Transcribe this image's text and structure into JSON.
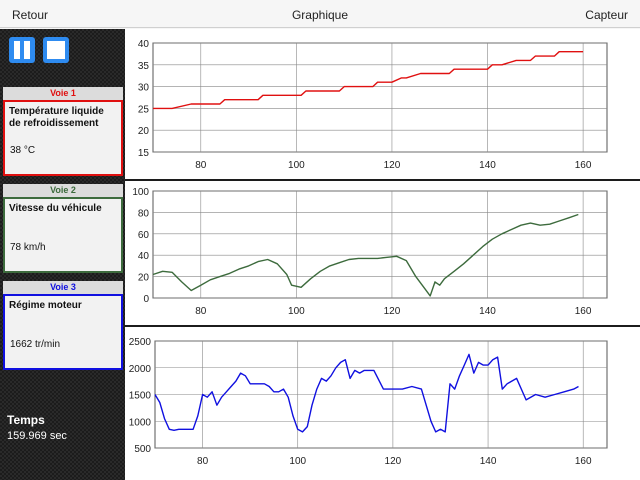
{
  "topbar": {
    "back_label": "Retour",
    "title": "Graphique",
    "sensor_label": "Capteur"
  },
  "controls": {
    "pause_icon": "pause-icon",
    "stop_icon": "stop-icon",
    "accent": "#2e8bf0"
  },
  "channels": [
    {
      "tab": "Voie 1",
      "name": "Température liquide de refroidissement",
      "value": "38 °C",
      "color": "#e01010"
    },
    {
      "tab": "Voie 2",
      "name": "Vitesse du véhicule",
      "value": "78 km/h",
      "color": "#3d6b3d"
    },
    {
      "tab": "Voie 3",
      "name": "Régime moteur",
      "value": "1662 tr/min",
      "color": "#1010e0"
    }
  ],
  "time": {
    "label": "Temps",
    "value": "159.969 sec"
  },
  "chart_data": [
    {
      "type": "line",
      "xlim": [
        70,
        165
      ],
      "ylim": [
        15,
        40
      ],
      "xticks": [
        80,
        100,
        120,
        140,
        160
      ],
      "yticks": [
        15,
        20,
        25,
        30,
        35,
        40
      ],
      "grid": true,
      "series": [
        {
          "color": "#e01010",
          "x": [
            70,
            73,
            74,
            78,
            79,
            81,
            82,
            84,
            85,
            90,
            91,
            92,
            93,
            99,
            100,
            101,
            102,
            107,
            108,
            109,
            110,
            114,
            115,
            116,
            117,
            119,
            120,
            122,
            123,
            126,
            127,
            131,
            132,
            133,
            134,
            138,
            139,
            140,
            141,
            142,
            143,
            146,
            147,
            149,
            150,
            151,
            152,
            154,
            155,
            158,
            159,
            160
          ],
          "y": [
            25,
            25,
            25,
            26,
            26,
            26,
            26,
            26,
            27,
            27,
            27,
            27,
            28,
            28,
            28,
            28,
            29,
            29,
            29,
            29,
            30,
            30,
            30,
            30,
            31,
            31,
            31,
            32,
            32,
            33,
            33,
            33,
            33,
            34,
            34,
            34,
            34,
            34,
            35,
            35,
            35,
            36,
            36,
            36,
            37,
            37,
            37,
            37,
            38,
            38,
            38,
            38
          ]
        }
      ]
    },
    {
      "type": "line",
      "xlim": [
        70,
        165
      ],
      "ylim": [
        0,
        100
      ],
      "xticks": [
        80,
        100,
        120,
        140,
        160
      ],
      "yticks": [
        0,
        20,
        40,
        60,
        80,
        100
      ],
      "grid": true,
      "series": [
        {
          "color": "#3d6b3d",
          "x": [
            70,
            72,
            74,
            76,
            78,
            80,
            82,
            84,
            86,
            88,
            90,
            92,
            94,
            96,
            98,
            99,
            101,
            103,
            105,
            107,
            109,
            111,
            113,
            115,
            117,
            119,
            121,
            123,
            125,
            127,
            128,
            129,
            130,
            131,
            133,
            135,
            137,
            139,
            141,
            143,
            145,
            147,
            149,
            151,
            153,
            155,
            157,
            159
          ],
          "y": [
            22,
            25,
            24,
            15,
            7,
            12,
            17,
            20,
            23,
            27,
            30,
            34,
            36,
            32,
            22,
            12,
            10,
            18,
            25,
            30,
            33,
            36,
            37,
            37,
            37,
            38,
            39,
            35,
            20,
            8,
            2,
            15,
            12,
            18,
            25,
            32,
            40,
            48,
            55,
            60,
            64,
            68,
            70,
            68,
            69,
            72,
            75,
            78
          ]
        }
      ]
    },
    {
      "type": "line",
      "xlim": [
        70,
        165
      ],
      "ylim": [
        500,
        2500
      ],
      "xticks": [
        80,
        100,
        120,
        140,
        160
      ],
      "yticks": [
        500,
        1000,
        1500,
        2000,
        2500
      ],
      "grid": true,
      "series": [
        {
          "color": "#1010e0",
          "x": [
            70,
            71,
            72,
            73,
            74,
            75,
            77,
            78,
            79,
            80,
            81,
            82,
            83,
            84,
            85,
            86,
            87,
            88,
            89,
            90,
            91,
            92,
            93,
            94,
            95,
            96,
            97,
            98,
            99,
            100,
            101,
            102,
            103,
            104,
            105,
            106,
            107,
            108,
            109,
            110,
            111,
            112,
            113,
            114,
            115,
            116,
            118,
            120,
            122,
            124,
            126,
            127,
            128,
            129,
            130,
            131,
            132,
            133,
            134,
            135,
            136,
            137,
            138,
            139,
            140,
            141,
            142,
            143,
            144,
            145,
            146,
            148,
            150,
            152,
            154,
            156,
            158,
            159
          ],
          "y": [
            1500,
            1350,
            1050,
            850,
            830,
            850,
            850,
            850,
            1100,
            1500,
            1450,
            1550,
            1300,
            1450,
            1550,
            1650,
            1750,
            1900,
            1850,
            1700,
            1700,
            1700,
            1700,
            1650,
            1550,
            1550,
            1600,
            1450,
            1100,
            850,
            800,
            900,
            1300,
            1600,
            1800,
            1750,
            1850,
            2000,
            2100,
            2150,
            1800,
            1950,
            1900,
            1950,
            1950,
            1950,
            1600,
            1600,
            1600,
            1650,
            1600,
            1300,
            1000,
            800,
            850,
            800,
            1700,
            1600,
            1850,
            2050,
            2250,
            1900,
            2100,
            2050,
            2050,
            2150,
            2200,
            1600,
            1700,
            1750,
            1800,
            1400,
            1500,
            1450,
            1500,
            1550,
            1600,
            1650
          ]
        }
      ]
    }
  ]
}
